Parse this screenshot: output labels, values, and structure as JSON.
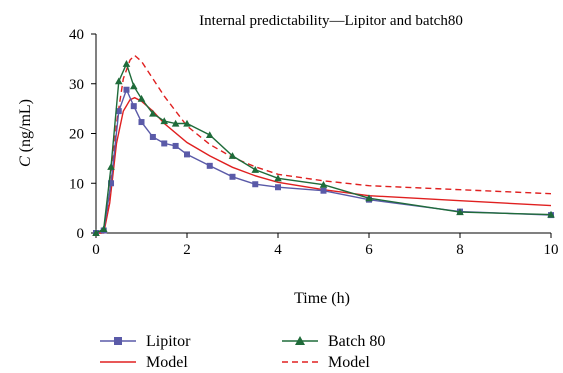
{
  "chart_data": {
    "type": "line",
    "title": "Internal predictability—Lipitor and batch80",
    "xlabel": "Time (h)",
    "ylabel_italic": "C",
    "ylabel_rest": " (ng/mL)",
    "xlim": [
      0,
      10
    ],
    "ylim": [
      0,
      40
    ],
    "xticks": [
      0,
      2,
      4,
      6,
      8,
      10
    ],
    "yticks": [
      0,
      10,
      20,
      30,
      40
    ],
    "grid": false,
    "legend_position": "bottom",
    "series": [
      {
        "name": "Lipitor",
        "kind": "observed",
        "color": "#5a5aa8",
        "marker": "square",
        "x": [
          0,
          0.17,
          0.33,
          0.5,
          0.67,
          0.83,
          1,
          1.25,
          1.5,
          1.75,
          2,
          2.5,
          3,
          3.5,
          4,
          5,
          6,
          8,
          10
        ],
        "y": [
          0,
          0.5,
          10,
          24.5,
          28.8,
          25.5,
          22.3,
          19.3,
          18,
          17.5,
          15.8,
          13.5,
          11.3,
          9.8,
          9.2,
          8.5,
          6.7,
          4.3,
          3.6
        ]
      },
      {
        "name": "Model",
        "kind": "model",
        "color": "#e02020",
        "dash": "solid",
        "x": [
          0,
          0.17,
          0.3,
          0.45,
          0.6,
          0.75,
          0.85,
          1,
          1.25,
          1.5,
          2,
          2.5,
          3,
          3.5,
          4,
          5,
          6,
          8,
          10
        ],
        "y": [
          0,
          0,
          6,
          18,
          24.5,
          26.8,
          27.2,
          26.5,
          24.5,
          22,
          18.2,
          15.5,
          13.2,
          11.5,
          10.2,
          8.7,
          7.5,
          6.5,
          5.5
        ]
      },
      {
        "name": "Batch 80",
        "kind": "observed",
        "color": "#1f6b3a",
        "marker": "triangle",
        "x": [
          0,
          0.17,
          0.33,
          0.5,
          0.67,
          0.83,
          1,
          1.25,
          1.5,
          1.75,
          2,
          2.5,
          3,
          3.5,
          4,
          5,
          6,
          8,
          10
        ],
        "y": [
          0,
          0.8,
          13.3,
          30.5,
          34,
          29.5,
          27,
          24,
          22.5,
          22,
          22,
          19.7,
          15.5,
          12.7,
          11,
          9.7,
          7,
          4.2,
          3.7
        ]
      },
      {
        "name": "Model",
        "kind": "model",
        "color": "#e02020",
        "dash": "dashed",
        "x": [
          0,
          0.17,
          0.3,
          0.45,
          0.6,
          0.75,
          0.85,
          1,
          1.25,
          1.5,
          2,
          2.5,
          3,
          3.5,
          4,
          5,
          6,
          8,
          10
        ],
        "y": [
          0,
          0,
          8,
          22,
          31,
          34.8,
          35.7,
          34.5,
          31,
          27.5,
          21.5,
          17.8,
          15.2,
          13.3,
          11.8,
          10.5,
          9.5,
          8.7,
          7.9
        ]
      }
    ]
  }
}
